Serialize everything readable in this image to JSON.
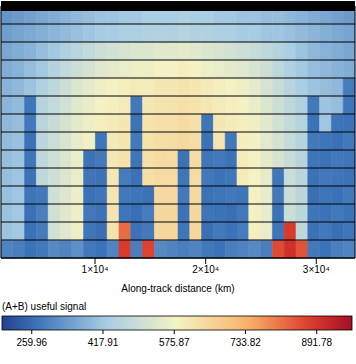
{
  "chart_data": {
    "type": "heatmap",
    "x_label": "Along-track distance (km)",
    "xlim": [
      1500,
      33500
    ],
    "xticks": [
      {
        "value": 10000,
        "label": "1×10⁴"
      },
      {
        "value": 20000,
        "label": "2×10⁴"
      },
      {
        "value": 30000,
        "label": "3×10⁴"
      }
    ],
    "ylim": [
      0,
      14
    ],
    "tick_labels": "x",
    "x_edges": [
      1500,
      2567,
      3633,
      4700,
      5767,
      6833,
      7900,
      8967,
      10033,
      11100,
      12167,
      13233,
      14300,
      15367,
      16433,
      17500,
      18567,
      19633,
      20700,
      21767,
      22833,
      23900,
      24967,
      26033,
      27100,
      28167,
      29233,
      30300,
      31367,
      32433,
      33500
    ],
    "y_edges": [
      0,
      1,
      2,
      3,
      4,
      5,
      6,
      7,
      8,
      9,
      10,
      11,
      12,
      13,
      14
    ],
    "cells": [
      [
        300,
        290,
        270,
        280,
        310,
        300,
        320,
        280,
        270,
        300,
        880,
        290,
        870,
        310,
        300,
        290,
        300,
        280,
        270,
        290,
        300,
        310,
        290,
        860,
        900,
        850,
        280,
        270,
        290,
        300
      ],
      [
        410,
        420,
        270,
        285,
        510,
        540,
        570,
        275,
        265,
        620,
        820,
        270,
        280,
        650,
        650,
        275,
        650,
        265,
        280,
        270,
        285,
        590,
        560,
        275,
        880,
        470,
        270,
        280,
        265,
        275
      ],
      [
        408,
        418,
        268,
        290,
        508,
        538,
        568,
        280,
        270,
        618,
        275,
        265,
        285,
        648,
        648,
        270,
        648,
        275,
        270,
        265,
        280,
        588,
        558,
        270,
        498,
        468,
        275,
        270,
        280,
        270
      ],
      [
        405,
        415,
        275,
        280,
        505,
        535,
        565,
        270,
        275,
        615,
        280,
        275,
        270,
        645,
        645,
        280,
        645,
        270,
        275,
        280,
        275,
        585,
        555,
        280,
        495,
        465,
        265,
        275,
        270,
        280
      ],
      [
        402,
        412,
        270,
        472,
        502,
        532,
        562,
        275,
        270,
        612,
        285,
        270,
        632,
        642,
        642,
        275,
        642,
        280,
        270,
        275,
        602,
        582,
        552,
        275,
        492,
        462,
        270,
        280,
        275,
        270
      ],
      [
        400,
        410,
        275,
        470,
        500,
        530,
        560,
        270,
        280,
        610,
        620,
        275,
        630,
        640,
        640,
        270,
        640,
        275,
        280,
        270,
        600,
        580,
        550,
        520,
        490,
        460,
        275,
        270,
        280,
        275
      ],
      [
        395,
        405,
        270,
        465,
        495,
        525,
        555,
        575,
        275,
        605,
        615,
        280,
        625,
        635,
        635,
        645,
        635,
        270,
        615,
        280,
        595,
        575,
        545,
        515,
        485,
        455,
        280,
        275,
        270,
        280
      ],
      [
        390,
        400,
        280,
        460,
        490,
        520,
        550,
        570,
        590,
        600,
        610,
        270,
        620,
        630,
        630,
        640,
        630,
        275,
        610,
        600,
        590,
        570,
        540,
        510,
        480,
        450,
        270,
        415,
        275,
        270
      ],
      [
        385,
        395,
        275,
        450,
        480,
        510,
        540,
        560,
        580,
        590,
        600,
        280,
        610,
        620,
        620,
        630,
        620,
        610,
        600,
        590,
        580,
        560,
        530,
        500,
        470,
        440,
        280,
        410,
        400,
        275
      ],
      [
        380,
        390,
        410,
        440,
        470,
        500,
        530,
        550,
        570,
        580,
        590,
        600,
        600,
        610,
        610,
        620,
        610,
        600,
        590,
        580,
        570,
        550,
        520,
        490,
        460,
        430,
        410,
        400,
        390,
        285
      ],
      [
        370,
        380,
        400,
        420,
        450,
        480,
        500,
        520,
        540,
        550,
        560,
        570,
        570,
        580,
        580,
        590,
        580,
        570,
        560,
        550,
        540,
        520,
        500,
        470,
        440,
        420,
        400,
        390,
        380,
        370
      ],
      [
        360,
        370,
        380,
        400,
        420,
        440,
        460,
        480,
        500,
        510,
        520,
        530,
        530,
        540,
        540,
        550,
        540,
        530,
        520,
        510,
        500,
        490,
        470,
        450,
        430,
        410,
        390,
        380,
        370,
        360
      ],
      [
        345,
        355,
        365,
        375,
        385,
        395,
        405,
        415,
        425,
        425,
        435,
        435,
        445,
        445,
        445,
        455,
        445,
        445,
        435,
        435,
        425,
        425,
        415,
        415,
        405,
        395,
        385,
        375,
        365,
        355
      ],
      [
        330,
        340,
        350,
        360,
        370,
        380,
        390,
        400,
        410,
        410,
        420,
        420,
        430,
        430,
        430,
        440,
        430,
        430,
        420,
        420,
        410,
        410,
        400,
        400,
        390,
        380,
        370,
        360,
        350,
        340
      ]
    ],
    "colorbar": {
      "label": "(A+B) useful signal",
      "range": [
        194,
        970
      ],
      "ticks": [
        259.96,
        417.91,
        575.87,
        733.82,
        891.78
      ]
    }
  }
}
